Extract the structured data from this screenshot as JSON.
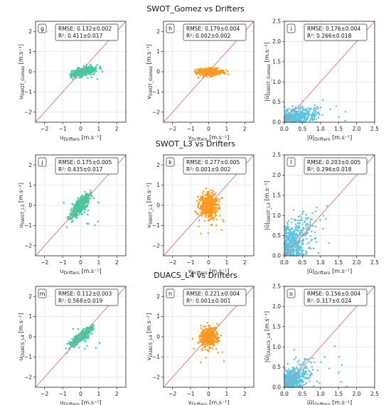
{
  "figure": {
    "row_titles": [
      "SWOT_Gomez vs Drifters",
      "SWOT_L3 vs Drifters",
      "DUACS_L4 vs Drifters"
    ]
  },
  "colors": {
    "u": "#3ecba0",
    "v": "#ff9a1a",
    "speed": "#5bc3e0",
    "one_to_one": "#f08080",
    "grid": "#e6e6e6"
  },
  "chart_data": [
    {
      "type": "scatter",
      "panel": "g",
      "row": 0,
      "col": 0,
      "x_label_main": "u",
      "x_label_sub": "Drifters",
      "y_label_main": "u",
      "y_label_sub": "SWOT_Gomez",
      "label_unit": " [m.s⁻¹]",
      "xlim": [
        -2.5,
        2.5
      ],
      "ylim": [
        -2.5,
        2.5
      ],
      "xticks": [
        -2,
        -1,
        0,
        1,
        2
      ],
      "yticks": [
        -2,
        -1,
        0,
        1,
        2
      ],
      "rmse": "RMSE: 0.132±0.002",
      "r2": "R²: 0.411±0.017",
      "cloud": {
        "n": 420,
        "cx": 0.1,
        "cy": 0.0,
        "sx": 0.35,
        "sy": 0.1,
        "slope": 0.2,
        "xmin": -0.6,
        "xmax": 1.2,
        "ymin": -0.4,
        "ymax": 0.6,
        "seed": 11
      }
    },
    {
      "type": "scatter",
      "panel": "h",
      "row": 0,
      "col": 1,
      "x_label_main": "v",
      "x_label_sub": "Drifters",
      "y_label_main": "v",
      "y_label_sub": "SWOT_Gomez",
      "label_unit": " [m.s⁻¹]",
      "xlim": [
        -2.5,
        2.5
      ],
      "ylim": [
        -2.5,
        2.5
      ],
      "xticks": [
        -2,
        -1,
        0,
        1,
        2
      ],
      "yticks": [
        -2,
        -1,
        0,
        1,
        2
      ],
      "rmse": "RMSE: 0.179±0.004",
      "r2": "R²: 0.002±0.002",
      "cloud": {
        "n": 420,
        "cx": 0.05,
        "cy": 0.0,
        "sx": 0.3,
        "sy": 0.08,
        "slope": 0.0,
        "xmin": -0.8,
        "xmax": 1.4,
        "ymin": -0.3,
        "ymax": 0.4,
        "seed": 23
      }
    },
    {
      "type": "scatter",
      "panel": "i",
      "row": 0,
      "col": 2,
      "x_label_main": "|ū|",
      "x_label_sub": "Drifters",
      "y_label_main": "|ū|",
      "y_label_sub": "SWOT_Gomez",
      "label_unit": " [m.s⁻¹]",
      "xlim": [
        0,
        2.5
      ],
      "ylim": [
        0,
        2.5
      ],
      "xticks": [
        0.0,
        0.5,
        1.0,
        1.5,
        2.0,
        2.5
      ],
      "yticks": [
        0.0,
        0.5,
        1.0,
        1.5,
        2.0,
        2.5
      ],
      "rmse": "RMSE: 0.176±0.004",
      "r2": "R²: 0.266±0.018",
      "cloud": {
        "n": 420,
        "cx": 0.3,
        "cy": 0.12,
        "sx": 0.35,
        "sy": 0.12,
        "slope": 0.2,
        "xmin": 0.0,
        "xmax": 1.8,
        "ymin": 0.0,
        "ymax": 0.7,
        "seed": 37,
        "abs": true
      }
    },
    {
      "type": "scatter",
      "panel": "j",
      "row": 1,
      "col": 0,
      "x_label_main": "u",
      "x_label_sub": "Drifters",
      "y_label_main": "u",
      "y_label_sub": "SWOT_L3",
      "label_unit": " [m.s⁻¹]",
      "xlim": [
        -2.5,
        2.5
      ],
      "ylim": [
        -2.5,
        2.5
      ],
      "xticks": [
        -2,
        -1,
        0,
        1,
        2
      ],
      "yticks": [
        -2,
        -1,
        0,
        1,
        2
      ],
      "rmse": "RMSE: 0.175±0.005",
      "r2": "R²: 0.435±0.017",
      "cloud": {
        "n": 520,
        "cx": 0.0,
        "cy": 0.0,
        "sx": 0.25,
        "sy": 0.18,
        "slope": 0.9,
        "xmin": -1.0,
        "xmax": 1.0,
        "ymin": -1.2,
        "ymax": 1.3,
        "seed": 41
      }
    },
    {
      "type": "scatter",
      "panel": "k",
      "row": 1,
      "col": 1,
      "x_label_main": "v",
      "x_label_sub": "Drifters",
      "y_label_main": "v",
      "y_label_sub": "SWOT_L3",
      "label_unit": " [m.s⁻¹]",
      "xlim": [
        -2.5,
        2.5
      ],
      "ylim": [
        -2.5,
        2.5
      ],
      "xticks": [
        -2,
        -1,
        0,
        1,
        2
      ],
      "yticks": [
        -2,
        -1,
        0,
        1,
        2
      ],
      "rmse": "RMSE: 0.277±0.005",
      "r2": "R²: 0.001±0.002",
      "cloud": {
        "n": 520,
        "cx": 0.0,
        "cy": 0.0,
        "sx": 0.25,
        "sy": 0.3,
        "slope": 0.0,
        "xmin": -0.9,
        "xmax": 0.9,
        "ymin": -1.5,
        "ymax": 1.7,
        "seed": 53
      }
    },
    {
      "type": "scatter",
      "panel": "l",
      "row": 1,
      "col": 2,
      "x_label_main": "|ū|",
      "x_label_sub": "Drifters",
      "y_label_main": "|ū|",
      "y_label_sub": "SWOT_L3",
      "label_unit": " [m.s⁻¹]",
      "xlim": [
        0,
        2.5
      ],
      "ylim": [
        0,
        2.5
      ],
      "xticks": [
        0.0,
        0.5,
        1.0,
        1.5,
        2.0,
        2.5
      ],
      "yticks": [
        0.0,
        0.5,
        1.0,
        1.5,
        2.0,
        2.5
      ],
      "rmse": "RMSE: 0.203±0.005",
      "r2": "R²: 0.296±0.018",
      "cloud": {
        "n": 520,
        "cx": 0.2,
        "cy": 0.25,
        "sx": 0.25,
        "sy": 0.3,
        "slope": 0.5,
        "xmin": 0.0,
        "xmax": 1.3,
        "ymin": 0.0,
        "ymax": 2.1,
        "seed": 67,
        "abs": true
      }
    },
    {
      "type": "scatter",
      "panel": "m",
      "row": 2,
      "col": 0,
      "x_label_main": "u",
      "x_label_sub": "Drifters",
      "y_label_main": "u",
      "y_label_sub": "DUACS_L4",
      "label_unit": " [m.s⁻¹]",
      "xlim": [
        -2.5,
        2.5
      ],
      "ylim": [
        -2.5,
        2.5
      ],
      "xticks": [
        -2,
        -1,
        0,
        1,
        2
      ],
      "yticks": [
        -2,
        -1,
        0,
        1,
        2
      ],
      "rmse": "RMSE: 0.112±0.003",
      "r2": "R²: 0.568±0.019",
      "cloud": {
        "n": 520,
        "cx": 0.0,
        "cy": 0.0,
        "sx": 0.3,
        "sy": 0.1,
        "slope": 0.7,
        "xmin": -1.0,
        "xmax": 1.1,
        "ymin": -0.8,
        "ymax": 1.3,
        "seed": 71
      }
    },
    {
      "type": "scatter",
      "panel": "n",
      "row": 2,
      "col": 1,
      "x_label_main": "v",
      "x_label_sub": "Drifters",
      "y_label_main": "v",
      "y_label_sub": "DUACS_L4",
      "label_unit": " [m.s⁻¹]",
      "xlim": [
        -2.5,
        2.5
      ],
      "ylim": [
        -2.5,
        2.5
      ],
      "xticks": [
        -2,
        -1,
        0,
        1,
        2
      ],
      "yticks": [
        -2,
        -1,
        0,
        1,
        2
      ],
      "rmse": "RMSE: 0.221±0.004",
      "r2": "R²: 0.001±0.001",
      "cloud": {
        "n": 520,
        "cx": 0.0,
        "cy": 0.0,
        "sx": 0.22,
        "sy": 0.22,
        "slope": 0.0,
        "xmin": -0.9,
        "xmax": 0.9,
        "ymin": -1.3,
        "ymax": 1.3,
        "seed": 83
      }
    },
    {
      "type": "scatter",
      "panel": "o",
      "row": 2,
      "col": 2,
      "x_label_main": "|ū|",
      "x_label_sub": "Drifters",
      "y_label_main": "|ū|",
      "y_label_sub": "DUACS_L4",
      "label_unit": " [m.s⁻¹]",
      "xlim": [
        0,
        2.5
      ],
      "ylim": [
        0,
        2.5
      ],
      "xticks": [
        0.0,
        0.5,
        1.0,
        1.5,
        2.0,
        2.5
      ],
      "yticks": [
        0.0,
        0.5,
        1.0,
        1.5,
        2.0,
        2.5
      ],
      "rmse": "RMSE: 0.156±0.004",
      "r2": "R²: 0.317±0.024",
      "cloud": {
        "n": 520,
        "cx": 0.2,
        "cy": 0.15,
        "sx": 0.25,
        "sy": 0.18,
        "slope": 0.4,
        "xmin": 0.0,
        "xmax": 1.8,
        "ymin": 0.0,
        "ymax": 1.7,
        "seed": 97,
        "abs": true
      }
    }
  ]
}
